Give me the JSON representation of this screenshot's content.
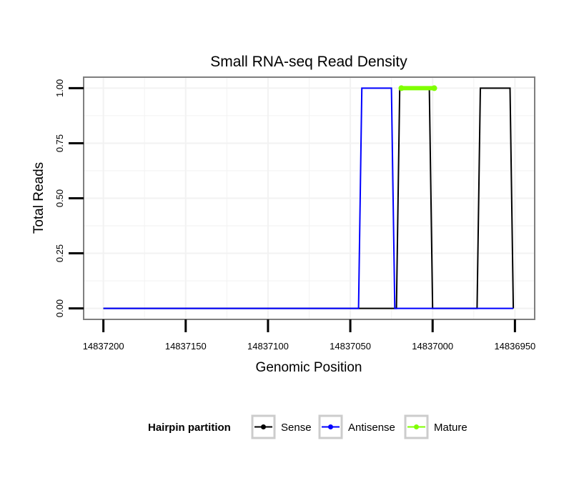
{
  "colors": {
    "sense": "#000000",
    "antisense": "#0000ff",
    "mature": "#7fff00",
    "panel_border": "#7f7f7f",
    "grid": "#f2f2f2",
    "legend_key_border": "#cccccc"
  },
  "chart_data": {
    "type": "line",
    "title": "Small RNA-seq Read Density",
    "xlabel": "Genomic Position",
    "ylabel": "Total Reads",
    "xlim": [
      14837212,
      14836938
    ],
    "x_reversed": true,
    "ylim": [
      -0.05,
      1.05
    ],
    "x_ticks": [
      14837200,
      14837150,
      14837100,
      14837050,
      14837000,
      14836950
    ],
    "x_tick_labels": [
      "14837200",
      "14837150",
      "14837100",
      "14837050",
      "14837000",
      "14836950"
    ],
    "y_ticks": [
      0,
      0.25,
      0.5,
      0.75,
      1
    ],
    "y_tick_labels": [
      "0.00",
      "0.25",
      "0.50",
      "0.75",
      "1.00"
    ],
    "grid": true,
    "series": [
      {
        "name": "Sense",
        "color_key": "sense",
        "points": [
          [
            14837200,
            0
          ],
          [
            14837022,
            0
          ],
          [
            14837020,
            1
          ],
          [
            14837002,
            1
          ],
          [
            14837000,
            0
          ],
          [
            14836973,
            0
          ],
          [
            14836971,
            1
          ],
          [
            14836953,
            1
          ],
          [
            14836951,
            0
          ]
        ]
      },
      {
        "name": "Antisense",
        "color_key": "antisense",
        "points": [
          [
            14837200,
            0
          ],
          [
            14837045,
            0
          ],
          [
            14837043,
            1
          ],
          [
            14837025,
            1
          ],
          [
            14837023,
            0
          ],
          [
            14836951,
            0
          ]
        ]
      },
      {
        "name": "Mature",
        "color_key": "mature",
        "points": [
          [
            14837019,
            1
          ],
          [
            14836999,
            1
          ]
        ]
      }
    ],
    "legend": {
      "title": "Hairpin partition",
      "position": "bottom",
      "entries": [
        "Sense",
        "Antisense",
        "Mature"
      ]
    }
  }
}
